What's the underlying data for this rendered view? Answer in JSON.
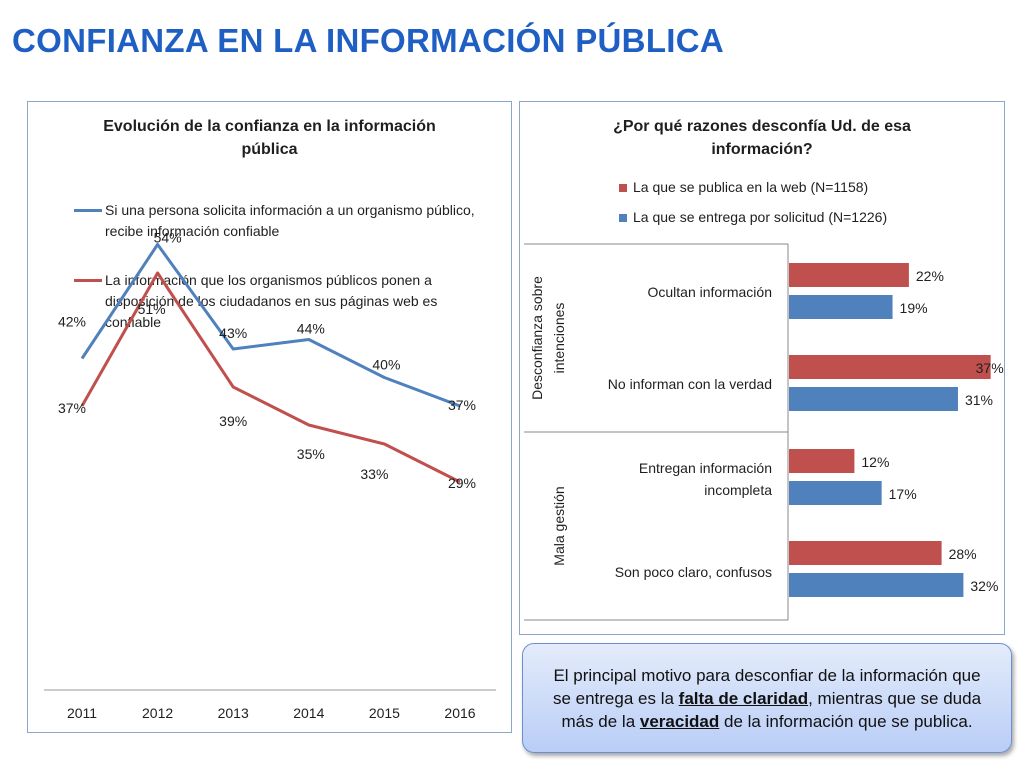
{
  "page": {
    "title": "CONFIANZA EN LA INFORMACIÓN PÚBLICA"
  },
  "colors": {
    "blue": "#4f81bd",
    "red": "#c0504d",
    "title_blue": "#1f5fc4"
  },
  "callout": {
    "text_before": "El principal motivo para desconfiar de la información que se entrega es la ",
    "emphasis_1": "falta de claridad",
    "text_middle": ", mientras que se duda más de la ",
    "emphasis_2": "veracidad",
    "text_after": " de la información que se publica."
  },
  "chart_data": [
    {
      "type": "line",
      "title": "Evolución de la confianza en la información pública",
      "x": [
        "2011",
        "2012",
        "2013",
        "2014",
        "2015",
        "2016"
      ],
      "ylim": [
        0,
        60
      ],
      "grid": false,
      "legend_position": "top",
      "series": [
        {
          "name": "Si una persona solicita información a un organismo público, recibe información confiable",
          "color": "#4f81bd",
          "values": [
            42,
            54,
            43,
            44,
            40,
            37
          ],
          "labels": [
            "42%",
            "54%",
            "43%",
            "44%",
            "40%",
            "37%"
          ]
        },
        {
          "name": "La información que los organismos públicos ponen a disposición de los ciudadanos en sus páginas web es confiable",
          "color": "#c0504d",
          "values": [
            37,
            51,
            39,
            35,
            33,
            29
          ],
          "labels": [
            "37%",
            "51%",
            "39%",
            "35%",
            "33%",
            "29%"
          ]
        }
      ]
    },
    {
      "type": "bar",
      "orientation": "horizontal",
      "title": "¿Por qué razones desconfía Ud. de esa información?",
      "legend_position": "top",
      "xlim": [
        0,
        40
      ],
      "series": [
        {
          "name": "La que se publica en la web (N=1158)",
          "color": "#c0504d",
          "values": [
            22,
            37,
            12,
            28
          ],
          "labels": [
            "22%",
            "37%",
            "12%",
            "28%"
          ]
        },
        {
          "name": "La que se entrega por solicitud (N=1226)",
          "color": "#4f81bd",
          "values": [
            19,
            31,
            17,
            32
          ],
          "labels": [
            "19%",
            "31%",
            "17%",
            "32%"
          ]
        }
      ],
      "categories": [
        {
          "label": "Ocultan información",
          "group": 0
        },
        {
          "label": "No informan con la verdad",
          "group": 0
        },
        {
          "label": "Entregan información incompleta",
          "group": 1
        },
        {
          "label": "Son poco claro, confusos",
          "group": 1
        }
      ],
      "groups": [
        "Desconfianza sobre intenciones",
        "Mala gestión"
      ]
    }
  ]
}
